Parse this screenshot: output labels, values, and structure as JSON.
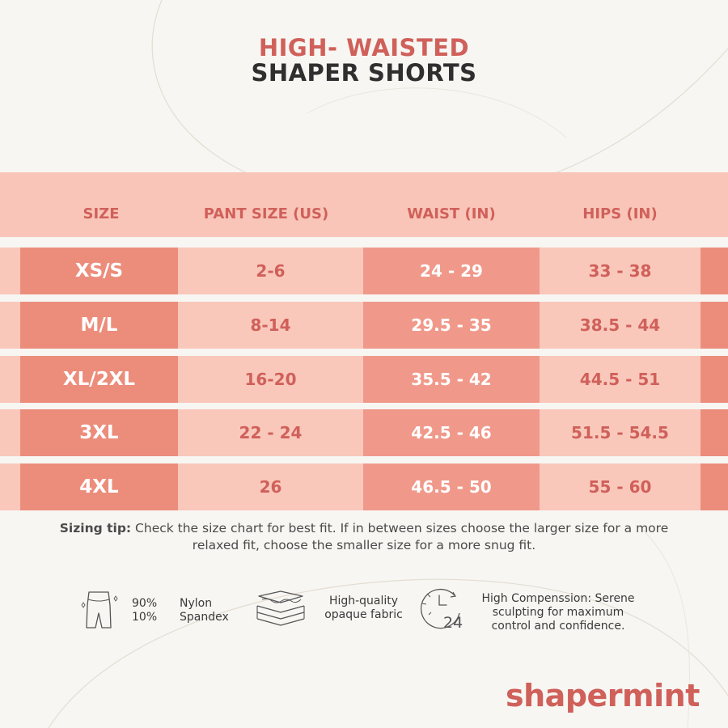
{
  "title": {
    "line1": "HIGH- WAISTED",
    "line2": "SHAPER SHORTS"
  },
  "table": {
    "headers": [
      "SIZE",
      "PANT SIZE (US)",
      "WAIST (IN)",
      "HIPS (IN)"
    ],
    "rows": [
      [
        "XS/S",
        "2-6",
        "24 - 29",
        "33 - 38"
      ],
      [
        "M/L",
        "8-14",
        "29.5 - 35",
        "38.5 - 44"
      ],
      [
        "XL/2XL",
        "16-20",
        "35.5 - 42",
        "44.5 - 51"
      ],
      [
        "3XL",
        "22 - 24",
        "42.5 - 46",
        "51.5 - 54.5"
      ],
      [
        "4XL",
        "26",
        "46.5 - 50",
        "55 - 60"
      ]
    ]
  },
  "tip": {
    "label": "Sizing tip:",
    "text": " Check the size chart for best fit. If in between sizes choose the larger size for a more relaxed fit, choose the smaller size for a more snug fit."
  },
  "features": {
    "pct1": "90%",
    "pct2": "10%",
    "mat1": "Nylon",
    "mat2": "Spandex",
    "fabric1": "High-quality",
    "fabric2": "opaque fabric",
    "comp1": "High Compenssion: Serene",
    "comp2": "sculpting for maximum",
    "comp3": "control and confidence.",
    "clock_number": "24"
  },
  "icons": [
    "shorts-icon",
    "fabric-layers-icon",
    "clock-24-icon"
  ],
  "brand": "shapermint",
  "colors": {
    "accent": "#d0605a",
    "header_bg": "#f9c5b8",
    "size_cell": "#ec8d7c",
    "waist_cell": "#f0998a",
    "row_bg": "#f9c8bb"
  }
}
